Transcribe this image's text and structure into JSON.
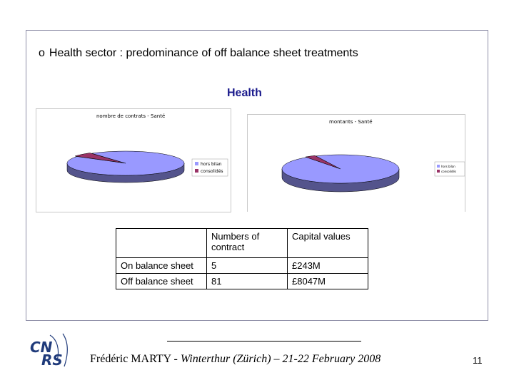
{
  "slide": {
    "bullet_symbol": "o",
    "bullet_text": "Health sector : predominance of off balance sheet treatments",
    "section_title": "Health"
  },
  "charts": [
    {
      "title": "nombre de contrats - Santé",
      "legend": [
        "hors bilan",
        "consolidés"
      ],
      "colors": [
        "#9999ff",
        "#993366"
      ]
    },
    {
      "title": "montants - Santé",
      "legend": [
        "hors bilan",
        "consolidés"
      ],
      "colors": [
        "#9999ff",
        "#993366"
      ]
    }
  ],
  "chart_data": [
    {
      "type": "pie",
      "title": "nombre de contrats - Santé",
      "categories": [
        "hors bilan",
        "consolidés"
      ],
      "values": [
        81,
        5
      ]
    },
    {
      "type": "pie",
      "title": "montants - Santé",
      "categories": [
        "hors bilan",
        "consolidés"
      ],
      "values": [
        8047,
        243
      ]
    }
  ],
  "table": {
    "headers": [
      "",
      "Numbers of contract",
      "Capital values"
    ],
    "rows": [
      [
        "On balance sheet",
        "5",
        "£243M"
      ],
      [
        "Off balance sheet",
        "81",
        "£8047M"
      ]
    ]
  },
  "footer": {
    "author": "Frédéric MARTY - ",
    "event": "Winterthur (Zürich) – 21-22 February 2008",
    "page_number": "11",
    "logo_text": "CNRS"
  }
}
